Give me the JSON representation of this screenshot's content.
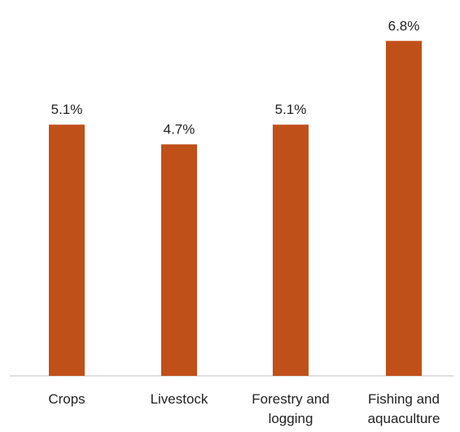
{
  "chart_data": {
    "type": "bar",
    "categories": [
      "Crops",
      "Livestock",
      "Forestry and\nlogging",
      "Fishing and\naquaculture"
    ],
    "values": [
      5.1,
      4.7,
      5.1,
      6.8
    ],
    "data_labels": [
      "5.1%",
      "4.7%",
      "5.1%",
      "6.8%"
    ],
    "title": "",
    "xlabel": "",
    "ylabel": "",
    "ylim": [
      0,
      7.3
    ],
    "grid": false,
    "legend": "none",
    "bar_color": "#c0501a",
    "axis_color": "#bfbfbf"
  }
}
